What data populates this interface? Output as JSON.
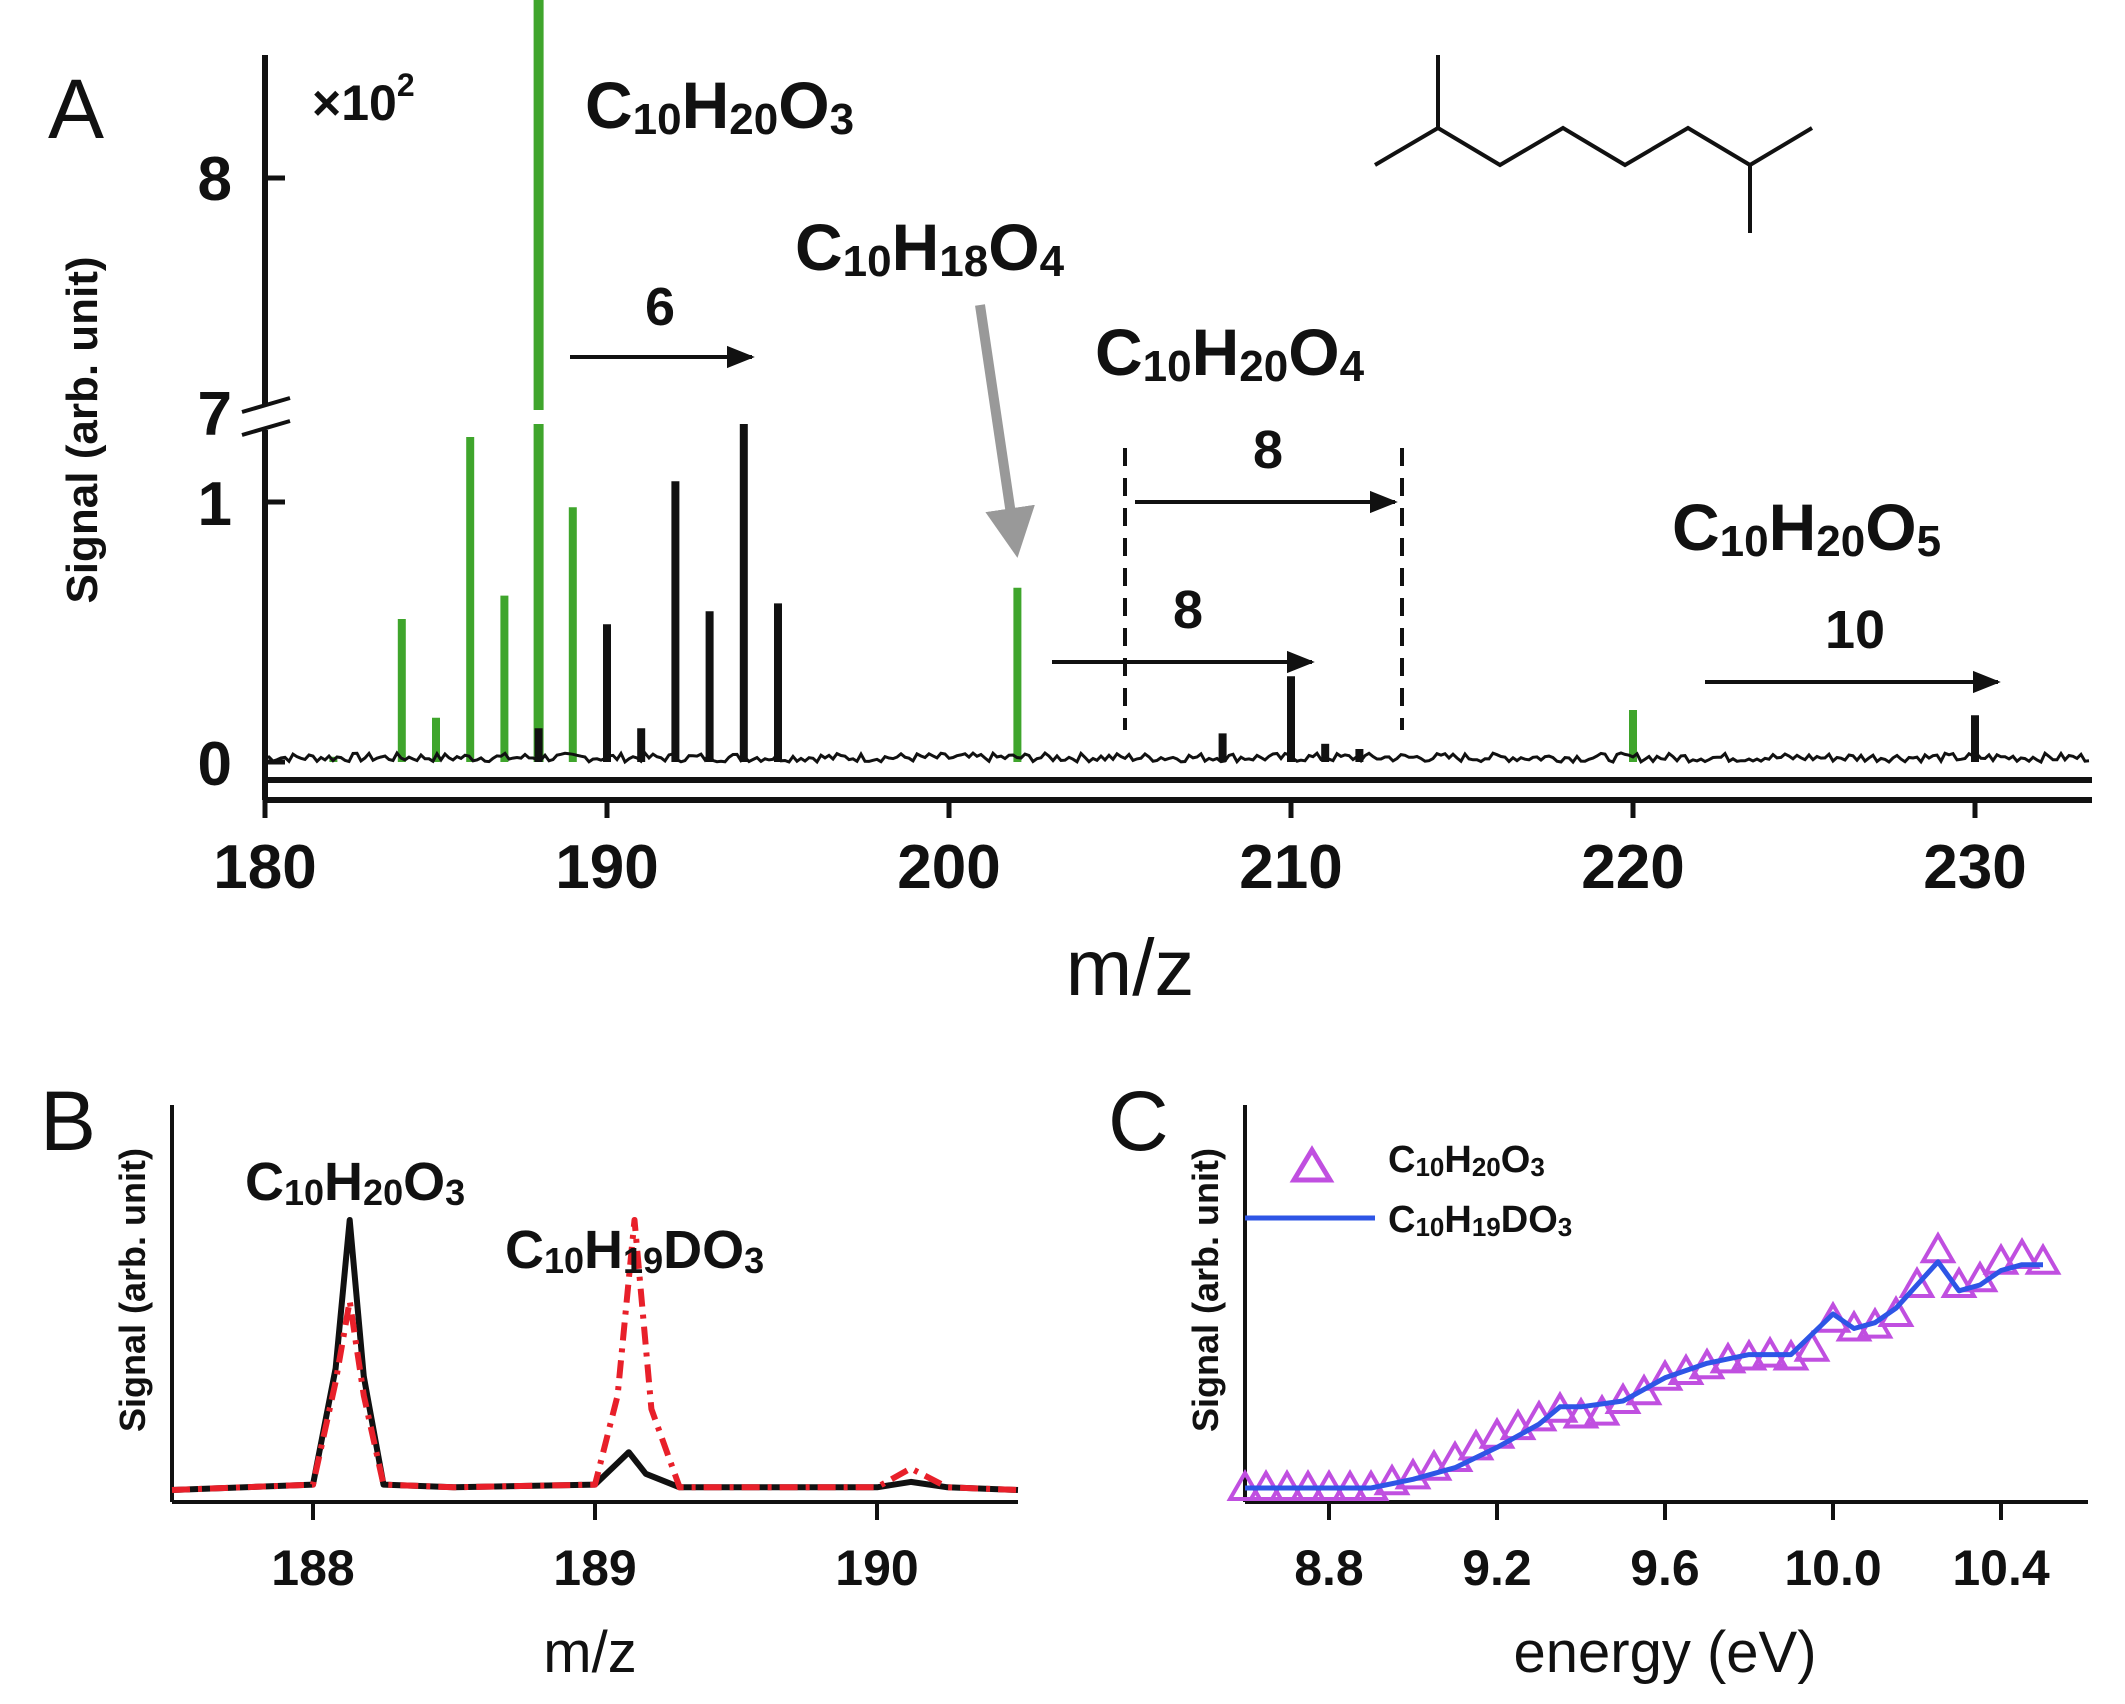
{
  "panels": {
    "A": {
      "letter": "A",
      "multiplier": "×10",
      "multiplier_exp": "2",
      "xlabel": "m/z",
      "ylabel": "Signal (arb. unit)",
      "x_ticks": [
        180,
        190,
        200,
        210,
        220,
        230
      ],
      "y_ticks_lower": [
        0,
        1
      ],
      "y_ticks_upper": [
        7,
        8
      ],
      "formulas": [
        {
          "base": "C",
          "sub1": "10",
          "mid": "H",
          "sub2": "20",
          "end": "O",
          "sub3": "3"
        },
        {
          "base": "C",
          "sub1": "10",
          "mid": "H",
          "sub2": "18",
          "end": "O",
          "sub3": "4"
        },
        {
          "base": "C",
          "sub1": "10",
          "mid": "H",
          "sub2": "20",
          "end": "O",
          "sub3": "4"
        },
        {
          "base": "C",
          "sub1": "10",
          "mid": "H",
          "sub2": "20",
          "end": "O",
          "sub3": "5"
        }
      ],
      "shift_labels": [
        "6",
        "8",
        "8",
        "10"
      ]
    },
    "B": {
      "letter": "B",
      "xlabel": "m/z",
      "ylabel": "Signal (arb. unit)",
      "x_ticks": [
        188,
        189,
        190
      ],
      "formulas": [
        {
          "base": "C",
          "sub1": "10",
          "mid": "H",
          "sub2": "20",
          "end": "O",
          "sub3": "3"
        },
        {
          "base": "C",
          "sub1": "10",
          "mid": "H",
          "sub2": "19",
          "end": "DO",
          "sub3": "3"
        }
      ]
    },
    "C": {
      "letter": "C",
      "xlabel": "energy (eV)",
      "ylabel": "Signal (arb. unit)",
      "x_ticks": [
        "8.8",
        "9.2",
        "9.6",
        "10.0",
        "10.4"
      ],
      "legend": [
        {
          "base": "C",
          "sub1": "10",
          "mid": "H",
          "sub2": "20",
          "end": "O",
          "sub3": "3"
        },
        {
          "base": "C",
          "sub1": "10",
          "mid": "H",
          "sub2": "19",
          "end": "DO",
          "sub3": "3"
        }
      ]
    }
  },
  "colors": {
    "green": "#3fa52c",
    "black": "#111111",
    "gray_arrow": "#999999",
    "red": "#e8202a",
    "violet": "#c04fe0",
    "blue": "#2e55e6"
  },
  "chart_data": [
    {
      "panel": "A",
      "type": "bar",
      "xlabel": "m/z",
      "ylabel": "Signal (arb. unit)",
      "xlim": [
        180,
        232
      ],
      "ylim": [
        0,
        8.5
      ],
      "y_axis_break": [
        1.3,
        7.0
      ],
      "y_multiplier": "×10^2",
      "series": [
        {
          "color": "green",
          "x": [
            182,
            184,
            185,
            186,
            187,
            188,
            189,
            202,
            220
          ],
          "y": [
            0.02,
            0.55,
            0.17,
            1.25,
            0.64,
            8.8,
            0.98,
            0.67,
            0.2
          ]
        },
        {
          "color": "black",
          "x": [
            188,
            190,
            191,
            192,
            193,
            194,
            195,
            208,
            210,
            211,
            212,
            230
          ],
          "y": [
            0.13,
            0.53,
            0.13,
            1.08,
            0.58,
            1.3,
            0.61,
            0.11,
            0.33,
            0.07,
            0.05,
            0.18
          ]
        }
      ]
    },
    {
      "panel": "B",
      "type": "line",
      "xlabel": "m/z",
      "ylabel": "Signal (arb. unit)",
      "xlim": [
        187.5,
        190.5
      ],
      "series": [
        {
          "style": "solid",
          "color": "black",
          "x": [
            187.5,
            188.0,
            188.08,
            188.13,
            188.18,
            188.25,
            188.5,
            189.0,
            189.08,
            189.12,
            189.18,
            189.3,
            190.0,
            190.12,
            190.25,
            190.5
          ],
          "y": [
            0.0,
            0.02,
            0.45,
            1.0,
            0.42,
            0.02,
            0.01,
            0.02,
            0.1,
            0.14,
            0.06,
            0.01,
            0.01,
            0.03,
            0.01,
            0.0
          ]
        },
        {
          "style": "dash-dot",
          "color": "red",
          "x": [
            187.5,
            188.0,
            188.08,
            188.13,
            188.18,
            188.25,
            188.5,
            189.0,
            189.08,
            189.14,
            189.2,
            189.3,
            190.0,
            190.12,
            190.25,
            190.5
          ],
          "y": [
            0.0,
            0.02,
            0.4,
            0.7,
            0.35,
            0.02,
            0.01,
            0.02,
            0.35,
            1.0,
            0.3,
            0.01,
            0.01,
            0.08,
            0.01,
            0.0
          ]
        }
      ]
    },
    {
      "panel": "C",
      "type": "scatter",
      "xlabel": "energy (eV)",
      "ylabel": "Signal (arb. unit)",
      "xlim": [
        8.6,
        10.6
      ],
      "series": [
        {
          "marker": "triangle",
          "color": "violet",
          "x": [
            8.6,
            8.65,
            8.7,
            8.75,
            8.8,
            8.85,
            8.9,
            8.95,
            9.0,
            9.05,
            9.1,
            9.15,
            9.2,
            9.25,
            9.3,
            9.35,
            9.4,
            9.45,
            9.5,
            9.55,
            9.6,
            9.65,
            9.7,
            9.75,
            9.8,
            9.85,
            9.9,
            9.95,
            10.0,
            10.05,
            10.1,
            10.15,
            10.2,
            10.25,
            10.3,
            10.35,
            10.4,
            10.45,
            10.5
          ],
          "y": [
            0.0,
            0.0,
            0.0,
            0.0,
            0.0,
            0.0,
            0.0,
            0.02,
            0.04,
            0.07,
            0.1,
            0.14,
            0.18,
            0.21,
            0.24,
            0.27,
            0.25,
            0.26,
            0.3,
            0.33,
            0.38,
            0.4,
            0.42,
            0.44,
            0.45,
            0.46,
            0.45,
            0.48,
            0.58,
            0.55,
            0.56,
            0.6,
            0.7,
            0.82,
            0.7,
            0.72,
            0.78,
            0.8,
            0.78
          ]
        },
        {
          "style": "solid",
          "color": "blue",
          "x": [
            8.6,
            8.8,
            8.9,
            9.0,
            9.1,
            9.2,
            9.3,
            9.35,
            9.4,
            9.5,
            9.6,
            9.7,
            9.8,
            9.9,
            10.0,
            10.05,
            10.1,
            10.15,
            10.2,
            10.25,
            10.3,
            10.35,
            10.4,
            10.45,
            10.5
          ],
          "y": [
            0.0,
            0.0,
            0.0,
            0.03,
            0.07,
            0.14,
            0.22,
            0.28,
            0.28,
            0.3,
            0.38,
            0.43,
            0.46,
            0.46,
            0.6,
            0.55,
            0.57,
            0.62,
            0.7,
            0.78,
            0.68,
            0.7,
            0.75,
            0.77,
            0.77
          ]
        }
      ]
    }
  ]
}
